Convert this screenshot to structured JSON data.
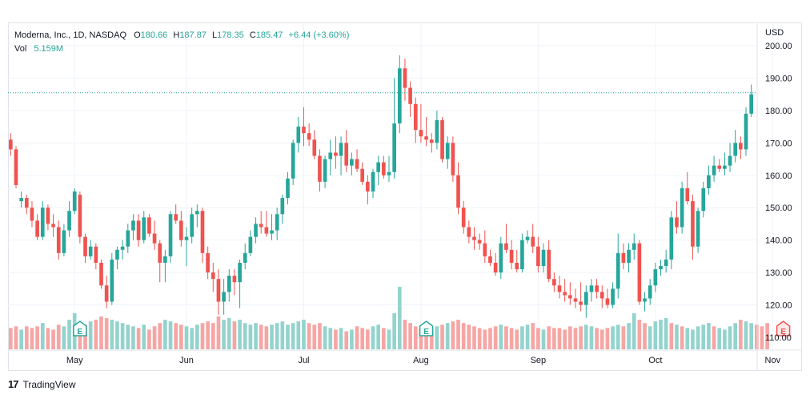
{
  "header": {
    "symbol": "Moderna, Inc., 1D, NASDAQ",
    "o_label": "O",
    "o_value": "180.66",
    "h_label": "H",
    "h_value": "187.87",
    "l_label": "L",
    "l_value": "178.35",
    "c_label": "C",
    "c_value": "185.47",
    "change": "+6.44 (+3.60%)",
    "vol_label": "Vol",
    "vol_value": "5.159M"
  },
  "currency": "USD",
  "brand": {
    "name": "TradingView"
  },
  "colors": {
    "up": "#26a69a",
    "down": "#ef5350",
    "vol_up": "#94d3cd",
    "vol_down": "#f5a6a4",
    "grid": "#f0f3fa",
    "text": "#131722"
  },
  "chart_data": {
    "type": "candlestick",
    "y_axis": {
      "min": 108,
      "max": 201,
      "ticks": [
        110,
        120,
        130,
        140,
        150,
        160,
        170,
        180,
        190,
        200
      ],
      "tick_labels": [
        "110.00",
        "120.00",
        "130.00",
        "140.00",
        "150.00",
        "160.00",
        "170.00",
        "180.00",
        "190.00",
        "200.00"
      ]
    },
    "x_axis": {
      "month_labels": [
        "May",
        "Jun",
        "Jul",
        "Aug",
        "Sep",
        "Oct",
        "Nov"
      ],
      "month_label_index": [
        12,
        33,
        55,
        77,
        99,
        121,
        143
      ]
    },
    "last_price": 185.47,
    "earnings_markers": [
      {
        "index": 13,
        "label": "E",
        "type": "up"
      },
      {
        "index": 78,
        "label": "E",
        "type": "up"
      },
      {
        "index": 145,
        "label": "E",
        "type": "down"
      }
    ],
    "candles": [
      [
        171,
        173,
        166,
        168
      ],
      [
        168,
        169,
        156,
        157
      ],
      [
        152,
        155,
        150,
        153
      ],
      [
        153,
        154,
        148,
        150
      ],
      [
        150,
        152,
        144,
        146
      ],
      [
        146,
        148,
        140,
        141
      ],
      [
        141,
        152,
        140,
        150
      ],
      [
        150,
        151,
        143,
        145
      ],
      [
        145,
        148,
        141,
        144
      ],
      [
        144,
        146,
        134,
        136
      ],
      [
        136,
        145,
        135,
        143
      ],
      [
        143,
        152,
        141,
        149
      ],
      [
        149,
        156,
        148,
        155
      ],
      [
        154,
        155,
        139,
        141
      ],
      [
        141,
        142,
        133,
        135
      ],
      [
        135,
        140,
        134,
        138
      ],
      [
        138,
        139,
        131,
        133
      ],
      [
        133,
        134,
        125,
        126
      ],
      [
        126,
        129,
        119,
        121
      ],
      [
        121,
        136,
        120,
        134
      ],
      [
        134,
        138,
        131,
        137
      ],
      [
        137,
        140,
        134,
        138
      ],
      [
        138,
        145,
        136,
        143
      ],
      [
        143,
        148,
        140,
        146
      ],
      [
        146,
        148,
        138,
        140
      ],
      [
        140,
        149,
        139,
        147
      ],
      [
        147,
        148,
        141,
        142
      ],
      [
        142,
        146,
        137,
        139
      ],
      [
        139,
        140,
        127,
        133
      ],
      [
        133,
        137,
        127,
        135
      ],
      [
        135,
        149,
        133,
        148
      ],
      [
        148,
        151,
        145,
        146
      ],
      [
        146,
        149,
        138,
        140
      ],
      [
        140,
        144,
        132,
        141
      ],
      [
        141,
        150,
        139,
        148
      ],
      [
        148,
        151,
        144,
        149
      ],
      [
        149,
        150,
        133,
        136
      ],
      [
        136,
        138,
        128,
        130
      ],
      [
        130,
        133,
        124,
        128
      ],
      [
        128,
        131,
        117,
        121
      ],
      [
        121,
        128,
        117,
        124
      ],
      [
        124,
        131,
        121,
        129
      ],
      [
        129,
        131,
        123,
        127
      ],
      [
        127,
        134,
        119,
        133
      ],
      [
        133,
        139,
        131,
        136
      ],
      [
        136,
        143,
        135,
        141
      ],
      [
        141,
        147,
        139,
        145
      ],
      [
        145,
        149,
        142,
        144
      ],
      [
        144,
        149,
        141,
        142
      ],
      [
        142,
        148,
        140,
        143
      ],
      [
        143,
        150,
        140,
        148
      ],
      [
        148,
        154,
        145,
        153
      ],
      [
        153,
        161,
        151,
        159
      ],
      [
        159,
        171,
        157,
        170
      ],
      [
        170,
        178,
        167,
        175
      ],
      [
        175,
        181,
        169,
        173
      ],
      [
        173,
        176,
        169,
        171
      ],
      [
        171,
        174,
        165,
        166
      ],
      [
        166,
        168,
        155,
        158
      ],
      [
        158,
        166,
        156,
        165
      ],
      [
        165,
        171,
        160,
        167
      ],
      [
        167,
        172,
        162,
        166
      ],
      [
        166,
        172,
        160,
        170
      ],
      [
        170,
        174,
        161,
        163
      ],
      [
        163,
        167,
        160,
        165
      ],
      [
        165,
        168,
        161,
        162
      ],
      [
        162,
        164,
        157,
        158
      ],
      [
        158,
        160,
        151,
        155
      ],
      [
        155,
        162,
        153,
        161
      ],
      [
        161,
        166,
        157,
        164
      ],
      [
        164,
        166,
        159,
        160
      ],
      [
        160,
        166,
        158,
        161
      ],
      [
        161,
        190,
        159,
        176
      ],
      [
        176,
        197,
        173,
        193
      ],
      [
        193,
        196,
        183,
        187
      ],
      [
        187,
        189,
        178,
        182
      ],
      [
        182,
        184,
        170,
        174
      ],
      [
        174,
        182,
        170,
        172
      ],
      [
        172,
        178,
        169,
        171
      ],
      [
        171,
        173,
        167,
        170
      ],
      [
        170,
        180,
        168,
        177
      ],
      [
        177,
        178,
        164,
        165
      ],
      [
        165,
        172,
        162,
        170
      ],
      [
        170,
        172,
        158,
        160
      ],
      [
        160,
        164,
        148,
        150
      ],
      [
        150,
        152,
        142,
        144
      ],
      [
        144,
        146,
        139,
        141
      ],
      [
        141,
        144,
        137,
        140
      ],
      [
        140,
        142,
        137,
        139
      ],
      [
        139,
        143,
        133,
        135
      ],
      [
        135,
        137,
        132,
        133
      ],
      [
        133,
        136,
        129,
        130
      ],
      [
        130,
        141,
        128,
        139
      ],
      [
        139,
        145,
        136,
        137
      ],
      [
        137,
        140,
        131,
        133
      ],
      [
        133,
        137,
        130,
        131
      ],
      [
        131,
        142,
        130,
        140
      ],
      [
        140,
        143,
        139,
        141
      ],
      [
        141,
        145,
        136,
        138
      ],
      [
        138,
        141,
        130,
        132
      ],
      [
        132,
        139,
        130,
        137
      ],
      [
        137,
        140,
        127,
        128
      ],
      [
        128,
        130,
        124,
        126
      ],
      [
        126,
        129,
        122,
        124
      ],
      [
        124,
        128,
        121,
        123
      ],
      [
        123,
        127,
        120,
        122
      ],
      [
        122,
        125,
        119,
        121
      ],
      [
        121,
        127,
        118,
        120
      ],
      [
        120,
        126,
        116,
        124
      ],
      [
        124,
        128,
        121,
        126
      ],
      [
        126,
        128,
        122,
        124
      ],
      [
        124,
        126,
        119,
        122
      ],
      [
        122,
        125,
        119,
        120
      ],
      [
        120,
        127,
        119,
        125
      ],
      [
        125,
        142,
        122,
        136
      ],
      [
        136,
        139,
        131,
        133
      ],
      [
        133,
        139,
        130,
        137
      ],
      [
        137,
        142,
        134,
        139
      ],
      [
        139,
        140,
        120,
        121
      ],
      [
        121,
        124,
        118,
        122
      ],
      [
        122,
        128,
        120,
        126
      ],
      [
        126,
        133,
        124,
        131
      ],
      [
        131,
        134,
        129,
        132
      ],
      [
        132,
        137,
        130,
        134
      ],
      [
        134,
        149,
        131,
        147
      ],
      [
        147,
        152,
        142,
        144
      ],
      [
        144,
        158,
        142,
        156
      ],
      [
        156,
        161,
        151,
        152
      ],
      [
        152,
        154,
        134,
        138
      ],
      [
        138,
        150,
        136,
        149
      ],
      [
        149,
        158,
        147,
        156
      ],
      [
        156,
        163,
        154,
        160
      ],
      [
        160,
        166,
        158,
        163
      ],
      [
        163,
        165,
        161,
        162
      ],
      [
        162,
        167,
        160,
        163
      ],
      [
        163,
        170,
        161,
        166
      ],
      [
        166,
        174,
        164,
        170
      ],
      [
        170,
        172,
        165,
        168
      ],
      [
        168,
        181,
        166,
        179
      ],
      [
        179,
        188,
        178,
        185
      ]
    ],
    "volume": {
      "max": 30,
      "values": [
        13,
        14,
        12,
        14,
        13,
        14,
        16,
        13,
        12,
        15,
        14,
        18,
        22,
        16,
        15,
        17,
        18,
        20,
        19,
        18,
        17,
        16,
        15,
        14,
        13,
        15,
        12,
        14,
        16,
        18,
        17,
        16,
        15,
        14,
        13,
        15,
        16,
        17,
        16,
        20,
        18,
        19,
        17,
        18,
        16,
        15,
        16,
        15,
        14,
        15,
        16,
        17,
        15,
        16,
        17,
        18,
        16,
        15,
        16,
        14,
        13,
        12,
        13,
        11,
        12,
        14,
        13,
        12,
        14,
        15,
        13,
        12,
        22,
        38,
        18,
        16,
        14,
        13,
        13,
        12,
        14,
        15,
        16,
        17,
        18,
        16,
        15,
        14,
        13,
        12,
        13,
        14,
        15,
        14,
        13,
        12,
        14,
        15,
        16,
        13,
        12,
        14,
        13,
        13,
        12,
        14,
        13,
        14,
        15,
        14,
        13,
        12,
        13,
        14,
        15,
        14,
        16,
        22,
        18,
        16,
        14,
        17,
        18,
        19,
        16,
        15,
        14,
        13,
        12,
        14,
        15,
        16,
        14,
        13,
        12,
        14,
        16,
        18,
        17,
        16,
        15,
        14,
        16
      ],
      "up": [
        0,
        0,
        1,
        0,
        0,
        0,
        1,
        0,
        0,
        0,
        1,
        1,
        1,
        0,
        0,
        1,
        0,
        0,
        0,
        1,
        1,
        1,
        1,
        1,
        0,
        1,
        0,
        0,
        0,
        1,
        1,
        0,
        0,
        1,
        1,
        1,
        0,
        0,
        0,
        0,
        1,
        1,
        0,
        1,
        1,
        1,
        1,
        0,
        0,
        1,
        1,
        1,
        1,
        1,
        1,
        1,
        0,
        0,
        0,
        1,
        1,
        0,
        1,
        0,
        1,
        0,
        0,
        0,
        1,
        1,
        0,
        1,
        1,
        1,
        0,
        0,
        0,
        0,
        0,
        0,
        1,
        0,
        1,
        0,
        0,
        0,
        0,
        0,
        0,
        0,
        0,
        0,
        1,
        0,
        0,
        0,
        1,
        1,
        0,
        0,
        1,
        0,
        0,
        0,
        0,
        0,
        0,
        0,
        1,
        1,
        0,
        0,
        0,
        1,
        1,
        0,
        1,
        1,
        0,
        0,
        1,
        1,
        1,
        1,
        0,
        1,
        0,
        1,
        1,
        1,
        1,
        1,
        0,
        1,
        1,
        1,
        1,
        0,
        1,
        1
      ]
    }
  }
}
